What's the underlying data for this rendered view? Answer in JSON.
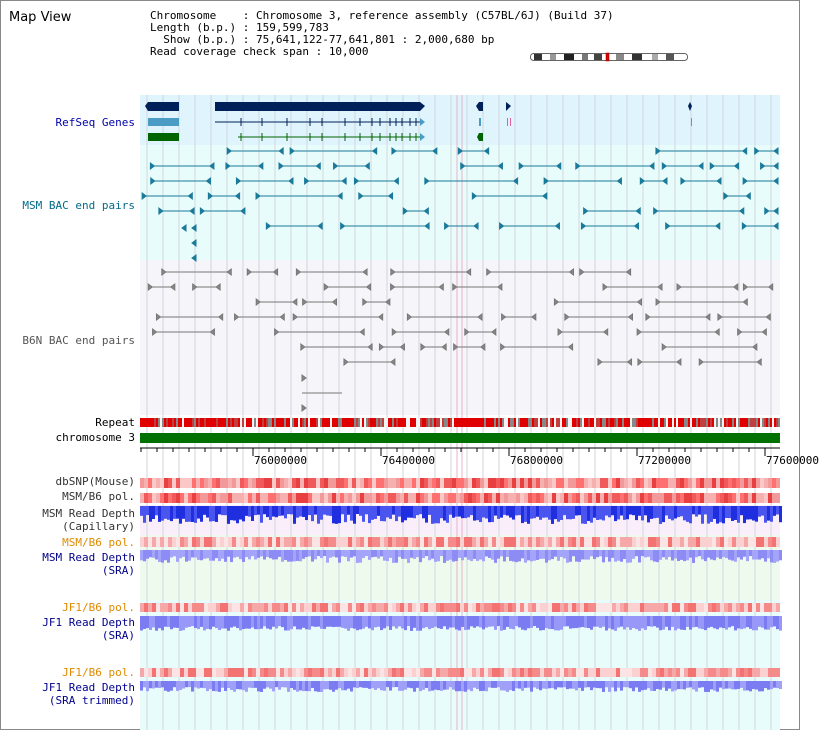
{
  "title": "Map View",
  "info": {
    "chromosome_key": "Chromosome    :",
    "chromosome_val": "Chromosome 3, reference assembly (C57BL/6J) (Build 37)",
    "length_key": "Length (b.p.) :",
    "length_val": "159,599,783",
    "show_key": "  Show (b.p.) :",
    "show_val": "75,641,122-77,641,801 : 2,000,680 bp",
    "span_key": "Read coverage check span :",
    "span_val": "10,000"
  },
  "tracks": {
    "refseq": "RefSeq Genes",
    "msm_bac": "MSM BAC end pairs",
    "b6n_bac": "B6N BAC end pairs",
    "repeat": "Repeat",
    "chromosome": "chromosome 3",
    "dbsnp": "dbSNP(Mouse)",
    "msm_b6_pol_1": "MSM/B6 pol.",
    "msm_depth_cap_1": "MSM Read Depth",
    "msm_depth_cap_2": "(Capillary)",
    "msm_b6_pol_2": "MSM/B6 pol.",
    "msm_depth_sra_1": "MSM Read Depth",
    "msm_depth_sra_2": "(SRA)",
    "jf1_pol_1": "JF1/B6 pol.",
    "jf1_depth_1": "JF1 Read Depth",
    "jf1_depth_2": "(SRA)",
    "jf1_pol_2": "JF1/B6 pol.",
    "jf1_trim_1": "JF1 Read Depth",
    "jf1_trim_2": "(SRA trimmed)"
  },
  "axis": {
    "ticks": [
      "76000000",
      "76400000",
      "76800000",
      "77200000",
      "77600000"
    ]
  },
  "colors": {
    "refseq_text": "#0000aa",
    "msm_text": "#006b8a",
    "b6n_text": "#555555",
    "pol_text": "#e08a00",
    "depth_text": "#00008b",
    "chromosome_green": "#007000",
    "repeat_red": "#e00000"
  }
}
